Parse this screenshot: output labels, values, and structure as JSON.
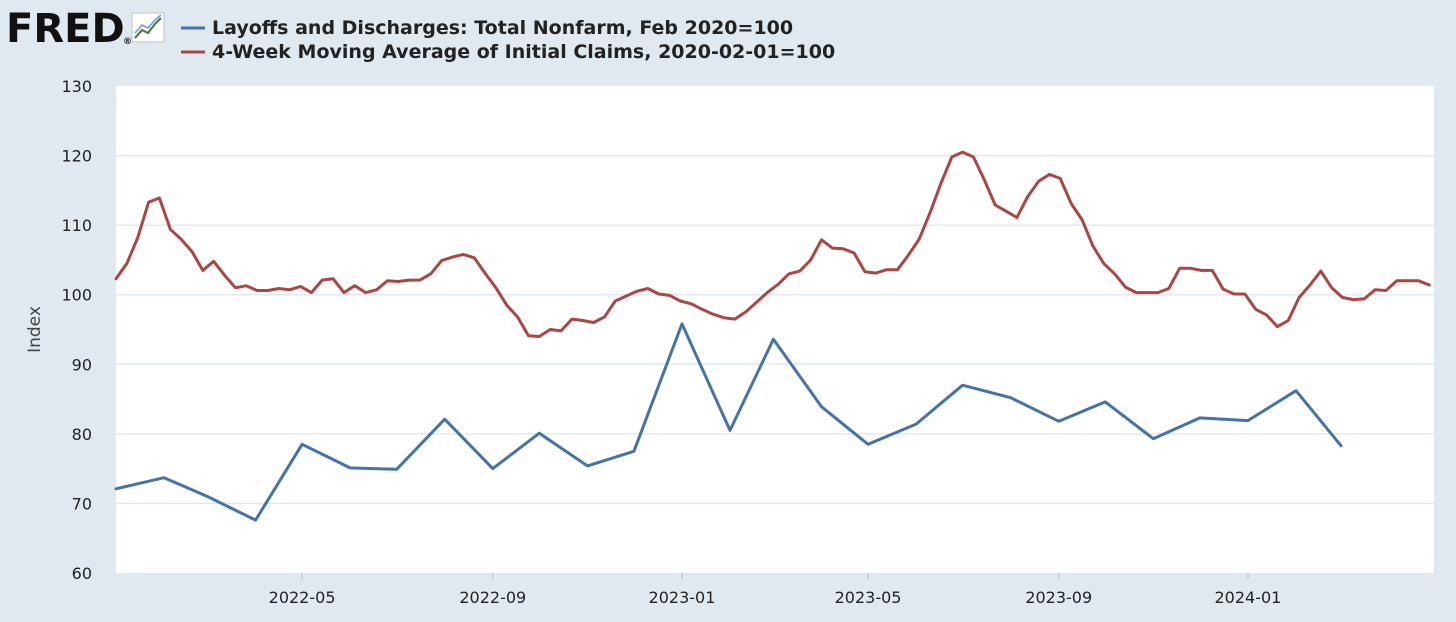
{
  "logo": {
    "text": "FRED",
    "registered": "®",
    "icon": "line-chart-icon"
  },
  "colors": {
    "background": "#e1e9f0",
    "plot_background": "#ffffff",
    "grid": "#e1e9f0",
    "series_blue": "#4572a7",
    "series_red": "#aa4643"
  },
  "chart_data": {
    "type": "line",
    "ylabel": "Index",
    "xlabel": "",
    "ylim": [
      60,
      130
    ],
    "yticks": [
      60,
      70,
      80,
      90,
      100,
      110,
      120,
      130
    ],
    "xlim": [
      "2022-01-01",
      "2024-04-30"
    ],
    "xticks": [
      "2022-05",
      "2022-09",
      "2023-01",
      "2023-05",
      "2023-09",
      "2024-01"
    ],
    "grid": true,
    "legend_position": "top-left",
    "series": [
      {
        "name": "Layoffs and Discharges: Total Nonfarm, Feb 2020=100",
        "color": "#4572a7",
        "x": [
          "2022-01-01",
          "2022-02-01",
          "2022-03-01",
          "2022-04-01",
          "2022-05-01",
          "2022-06-01",
          "2022-07-01",
          "2022-08-01",
          "2022-09-01",
          "2022-10-01",
          "2022-11-01",
          "2022-12-01",
          "2023-01-01",
          "2023-02-01",
          "2023-03-01",
          "2023-04-01",
          "2023-05-01",
          "2023-06-01",
          "2023-07-01",
          "2023-08-01",
          "2023-09-01",
          "2023-10-01",
          "2023-11-01",
          "2023-12-01",
          "2024-01-01",
          "2024-02-01",
          "2024-03-01"
        ],
        "values": [
          72.1,
          73.7,
          71.0,
          67.6,
          78.5,
          75.1,
          74.9,
          82.1,
          75.0,
          80.1,
          75.4,
          77.5,
          95.8,
          80.5,
          93.6,
          83.9,
          78.5,
          81.4,
          87.0,
          85.2,
          81.8,
          84.6,
          79.3,
          82.3,
          81.9,
          86.2,
          78.3
        ]
      },
      {
        "name": "4-Week Moving Average of Initial Claims, 2020-02-01=100",
        "color": "#aa4643",
        "x": [
          "2022-01-01",
          "2022-01-08",
          "2022-01-15",
          "2022-01-22",
          "2022-01-29",
          "2022-02-05",
          "2022-02-12",
          "2022-02-19",
          "2022-02-26",
          "2022-03-05",
          "2022-03-12",
          "2022-03-19",
          "2022-03-26",
          "2022-04-02",
          "2022-04-09",
          "2022-04-16",
          "2022-04-23",
          "2022-04-30",
          "2022-05-07",
          "2022-05-14",
          "2022-05-21",
          "2022-05-28",
          "2022-06-04",
          "2022-06-11",
          "2022-06-18",
          "2022-06-25",
          "2022-07-02",
          "2022-07-09",
          "2022-07-16",
          "2022-07-23",
          "2022-07-30",
          "2022-08-06",
          "2022-08-13",
          "2022-08-20",
          "2022-08-27",
          "2022-09-03",
          "2022-09-10",
          "2022-09-17",
          "2022-09-24",
          "2022-10-01",
          "2022-10-08",
          "2022-10-15",
          "2022-10-22",
          "2022-10-29",
          "2022-11-05",
          "2022-11-12",
          "2022-11-19",
          "2022-11-26",
          "2022-12-03",
          "2022-12-10",
          "2022-12-17",
          "2022-12-24",
          "2022-12-31",
          "2023-01-07",
          "2023-01-14",
          "2023-01-21",
          "2023-01-28",
          "2023-02-04",
          "2023-02-11",
          "2023-02-18",
          "2023-02-25",
          "2023-03-04",
          "2023-03-11",
          "2023-03-18",
          "2023-03-25",
          "2023-04-01",
          "2023-04-08",
          "2023-04-15",
          "2023-04-22",
          "2023-04-29",
          "2023-05-06",
          "2023-05-13",
          "2023-05-20",
          "2023-05-27",
          "2023-06-03",
          "2023-06-10",
          "2023-06-17",
          "2023-06-24",
          "2023-07-01",
          "2023-07-08",
          "2023-07-15",
          "2023-07-22",
          "2023-07-29",
          "2023-08-05",
          "2023-08-12",
          "2023-08-19",
          "2023-08-26",
          "2023-09-02",
          "2023-09-09",
          "2023-09-16",
          "2023-09-23",
          "2023-09-30",
          "2023-10-07",
          "2023-10-14",
          "2023-10-21",
          "2023-10-28",
          "2023-11-04",
          "2023-11-11",
          "2023-11-18",
          "2023-11-25",
          "2023-12-02",
          "2023-12-09",
          "2023-12-16",
          "2023-12-23",
          "2023-12-30",
          "2024-01-06",
          "2024-01-13",
          "2024-01-20",
          "2024-01-27",
          "2024-02-03",
          "2024-02-10",
          "2024-02-17",
          "2024-02-24",
          "2024-03-02",
          "2024-03-09",
          "2024-03-16",
          "2024-03-23",
          "2024-03-30",
          "2024-04-06",
          "2024-04-13",
          "2024-04-20",
          "2024-04-27"
        ],
        "values": [
          102.3,
          104.5,
          108.2,
          113.3,
          113.9,
          109.4,
          108.0,
          106.2,
          103.5,
          104.8,
          102.8,
          101.0,
          101.3,
          100.6,
          100.6,
          100.9,
          100.7,
          101.2,
          100.3,
          102.1,
          102.3,
          100.3,
          101.3,
          100.3,
          100.7,
          102.0,
          101.9,
          102.1,
          102.1,
          103.0,
          104.9,
          105.4,
          105.8,
          105.3,
          103.1,
          101.0,
          98.5,
          96.8,
          94.1,
          94.0,
          95.0,
          94.8,
          96.5,
          96.3,
          96.0,
          96.8,
          99.1,
          99.8,
          100.5,
          100.9,
          100.1,
          99.9,
          99.1,
          98.7,
          97.9,
          97.2,
          96.7,
          96.5,
          97.5,
          98.9,
          100.3,
          101.5,
          103.0,
          103.4,
          105.0,
          107.9,
          106.7,
          106.6,
          106.0,
          103.3,
          103.1,
          103.6,
          103.6,
          105.7,
          108.0,
          111.8,
          116.0,
          119.8,
          120.5,
          119.8,
          116.5,
          112.9,
          112.0,
          111.1,
          114.1,
          116.3,
          117.3,
          116.7,
          113.1,
          110.8,
          107.0,
          104.5,
          103.0,
          101.1,
          100.3,
          100.3,
          100.3,
          100.9,
          103.8,
          103.8,
          103.5,
          103.5,
          100.8,
          100.1,
          100.1,
          97.9,
          97.1,
          95.4,
          96.3,
          99.6,
          101.4,
          103.4,
          101.0,
          99.6,
          99.3,
          99.4,
          100.7,
          100.6,
          102.0,
          102.0,
          102.0,
          101.4
        ]
      }
    ]
  }
}
